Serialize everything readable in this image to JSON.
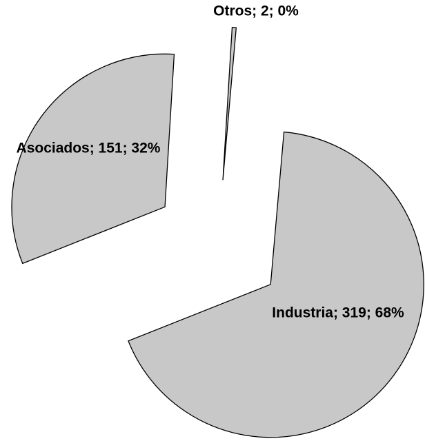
{
  "chart_data": {
    "type": "pie",
    "values": [
      319,
      151,
      2
    ],
    "value_labels": [
      "Industria; 319; 68%",
      "Asociados; 151; 32%",
      "Otros; 2; 0%"
    ],
    "color": "#c8c8c8"
  }
}
